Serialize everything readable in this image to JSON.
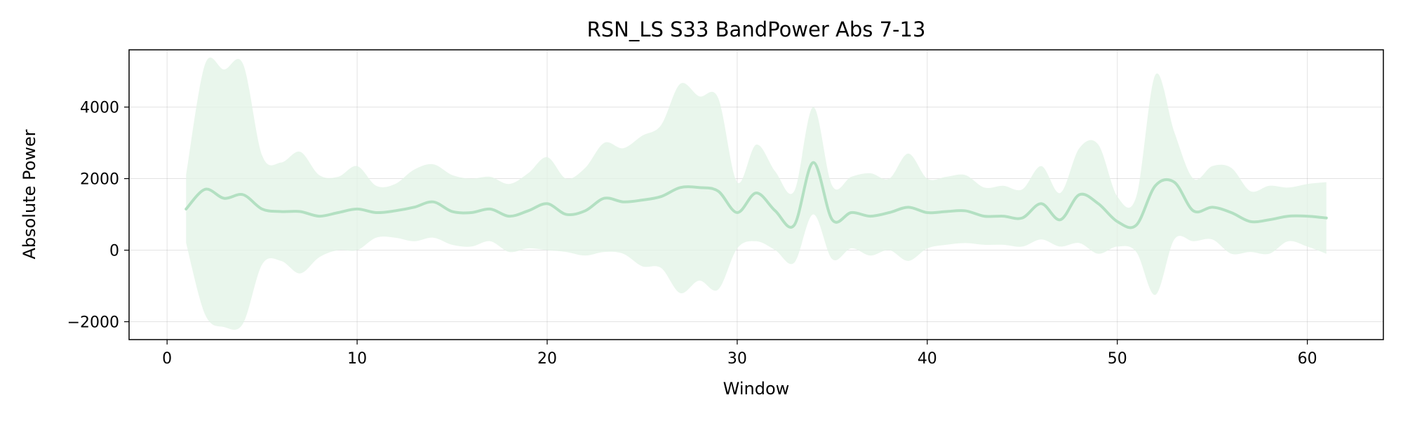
{
  "chart_data": {
    "type": "line",
    "title": "RSN_LS S33 BandPower Abs 7-13",
    "xlabel": "Window",
    "ylabel": "Absolute Power",
    "xlim": [
      -2,
      64
    ],
    "ylim": [
      -2500,
      5600
    ],
    "xticks": [
      0,
      10,
      20,
      30,
      40,
      50,
      60
    ],
    "yticks": [
      -2000,
      0,
      2000,
      4000
    ],
    "ytick_labels": [
      "−2000",
      "0",
      "2000",
      "4000"
    ],
    "grid": true,
    "line_color": "#b3e0c2",
    "band_color": "#e1f3e6",
    "series": [
      {
        "x": [
          1,
          2,
          3,
          4,
          5,
          6,
          7,
          8,
          9,
          10,
          11,
          12,
          13,
          14,
          15,
          16,
          17,
          18,
          19,
          20,
          21,
          22,
          23,
          24,
          25,
          26,
          27,
          28,
          29,
          30,
          31,
          32,
          33,
          34,
          35,
          36,
          37,
          38,
          39,
          40,
          41,
          42,
          43,
          44,
          45,
          46,
          47,
          48,
          49,
          50,
          51,
          52,
          53,
          54,
          55,
          56,
          57,
          58,
          59,
          60,
          61
        ],
        "mean": [
          1150,
          1700,
          1450,
          1550,
          1150,
          1080,
          1080,
          950,
          1050,
          1150,
          1050,
          1100,
          1200,
          1350,
          1080,
          1050,
          1150,
          950,
          1100,
          1300,
          1000,
          1100,
          1450,
          1350,
          1400,
          1500,
          1750,
          1750,
          1650,
          1050,
          1600,
          1100,
          700,
          2450,
          850,
          1050,
          950,
          1050,
          1200,
          1050,
          1080,
          1100,
          950,
          950,
          900,
          1300,
          850,
          1550,
          1300,
          800,
          700,
          1800,
          1900,
          1100,
          1200,
          1050,
          800,
          850,
          950,
          950,
          900
        ],
        "upper": [
          2100,
          5200,
          5050,
          5200,
          2650,
          2450,
          2750,
          2100,
          2050,
          2350,
          1800,
          1850,
          2250,
          2400,
          2100,
          2000,
          2050,
          1850,
          2150,
          2600,
          2000,
          2300,
          3000,
          2850,
          3200,
          3500,
          4650,
          4300,
          4250,
          1900,
          2950,
          2200,
          1650,
          4000,
          1800,
          2050,
          2150,
          2000,
          2700,
          2000,
          2050,
          2100,
          1750,
          1800,
          1700,
          2350,
          1600,
          2850,
          2950,
          1500,
          1500,
          4900,
          3300,
          2000,
          2350,
          2300,
          1650,
          1800,
          1750,
          1850,
          1900
        ],
        "lower": [
          200,
          -1800,
          -2150,
          -2050,
          -400,
          -300,
          -650,
          -200,
          0,
          0,
          350,
          350,
          250,
          350,
          150,
          100,
          250,
          -50,
          50,
          0,
          -50,
          -150,
          -50,
          -100,
          -450,
          -500,
          -1200,
          -850,
          -1100,
          50,
          250,
          0,
          -350,
          1000,
          -250,
          50,
          -150,
          0,
          -300,
          50,
          150,
          200,
          150,
          150,
          100,
          300,
          100,
          200,
          -100,
          100,
          -50,
          -1250,
          300,
          250,
          300,
          -100,
          -50,
          -100,
          250,
          100,
          -100
        ]
      }
    ]
  }
}
